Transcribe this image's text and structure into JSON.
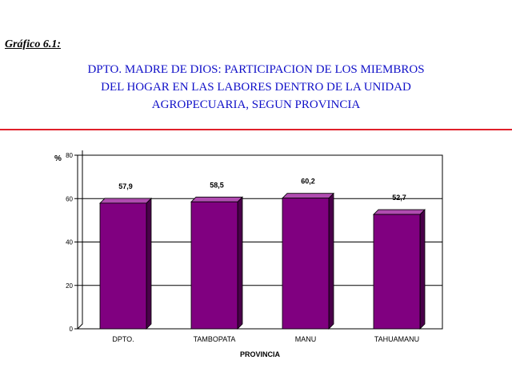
{
  "figure_label": "Gráfico 6.1:",
  "title_lines": [
    "DPTO. MADRE DE DIOS: PARTICIPACION DE LOS MIEMBROS",
    "DEL HOGAR EN LAS LABORES DENTRO DE LA UNIDAD",
    "AGROPECUARIA, SEGUN PROVINCIA"
  ],
  "colors": {
    "title": "#1010c8",
    "rule": "#e0202a",
    "bar_front": "#800080",
    "bar_side": "#4a004a",
    "bar_top": "#b04cb0"
  },
  "chart_data": {
    "type": "bar",
    "categories": [
      "DPTO.",
      "TAMBOPATA",
      "MANU",
      "TAHUAMANU"
    ],
    "values": [
      57.9,
      58.5,
      60.2,
      52.7
    ],
    "data_labels": [
      "57,9",
      "58,5",
      "60,2",
      "52,7"
    ],
    "ylabel": "%",
    "xlabel": "PROVINCIA",
    "ylim": [
      0,
      80
    ],
    "yticks": [
      "0",
      "20",
      "40",
      "60",
      "80"
    ],
    "grid": true,
    "legend": "none"
  }
}
